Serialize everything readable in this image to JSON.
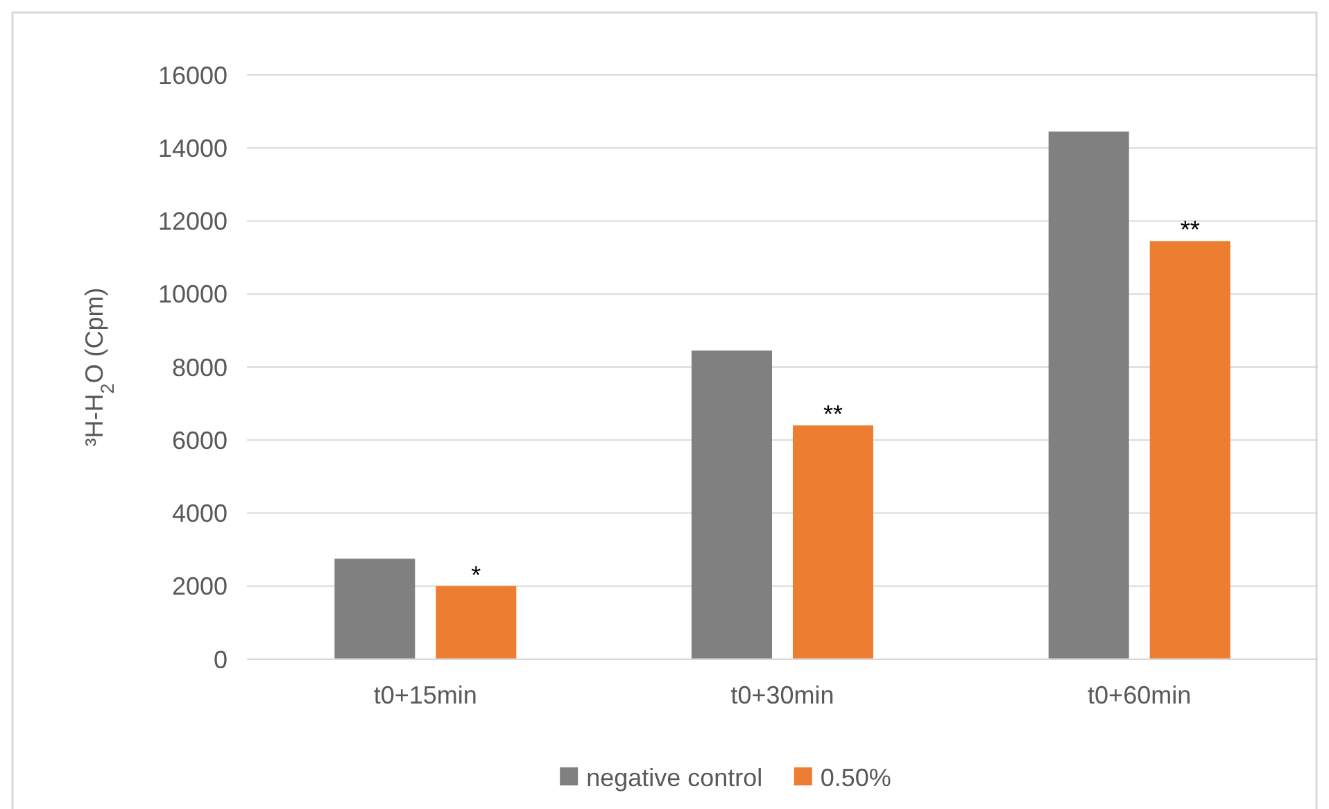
{
  "chart_data": {
    "type": "bar",
    "ylabel": "³H-H$_{2}$O (Cpm)",
    "categories": [
      "t0+15min",
      "t0+30min",
      "t0+60min"
    ],
    "series": [
      {
        "name": "negative control",
        "color": "#808080",
        "values": [
          2750,
          8450,
          14450
        ]
      },
      {
        "name": "0.50%",
        "color": "#ed7d31",
        "values": [
          2000,
          6400,
          11450
        ]
      }
    ],
    "ylim": [
      0,
      16000
    ],
    "yticks": [
      0,
      2000,
      4000,
      6000,
      8000,
      10000,
      12000,
      14000,
      16000
    ],
    "grid": "y",
    "legend": "bottom",
    "annotations": [
      "*",
      "**",
      "**"
    ]
  }
}
